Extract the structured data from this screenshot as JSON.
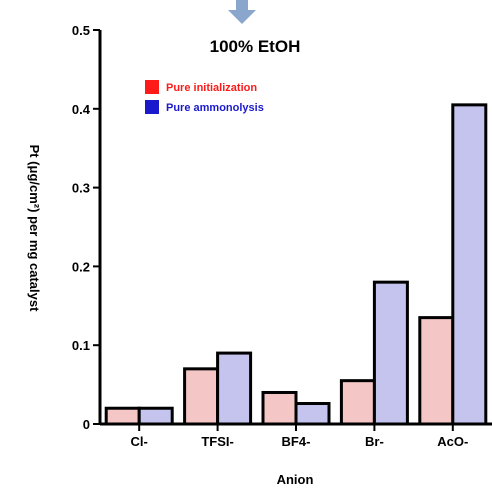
{
  "colors": {
    "initial": "#f4c6c6",
    "ammonolysis": "#c4c4ee",
    "legend_initial": "#ff1a1a",
    "legend_ammonolysis": "#1a1acc",
    "legend_text_initial": "#ff1a1a",
    "legend_text_ammonolysis": "#1a1acc",
    "axis": "#000000",
    "arrow": "#8aa6cc"
  },
  "chart_data": {
    "type": "bar",
    "title": "100% EtOH",
    "xlabel": "Anion",
    "ylabel": "Pt (μg/cm²) per mg catalyst",
    "categories": [
      "Cl-",
      "TFSI-",
      "BF4-",
      "Br-",
      "AcO-"
    ],
    "ylim": [
      0,
      0.5
    ],
    "yticks": [
      0,
      0.1,
      0.2,
      0.3,
      0.4,
      0.5
    ],
    "ytick_labels": [
      "0",
      "0.1",
      "0.2",
      "0.3",
      "0.4",
      "0.5"
    ],
    "series": [
      {
        "name": "Pure initialization",
        "color_key": "initial",
        "values": [
          0.02,
          0.07,
          0.04,
          0.055,
          0.135
        ]
      },
      {
        "name": "Pure ammonolysis",
        "color_key": "ammonolysis",
        "values": [
          0.02,
          0.09,
          0.026,
          0.18,
          0.405
        ]
      }
    ],
    "legend_position": "top-left",
    "grid": false
  }
}
